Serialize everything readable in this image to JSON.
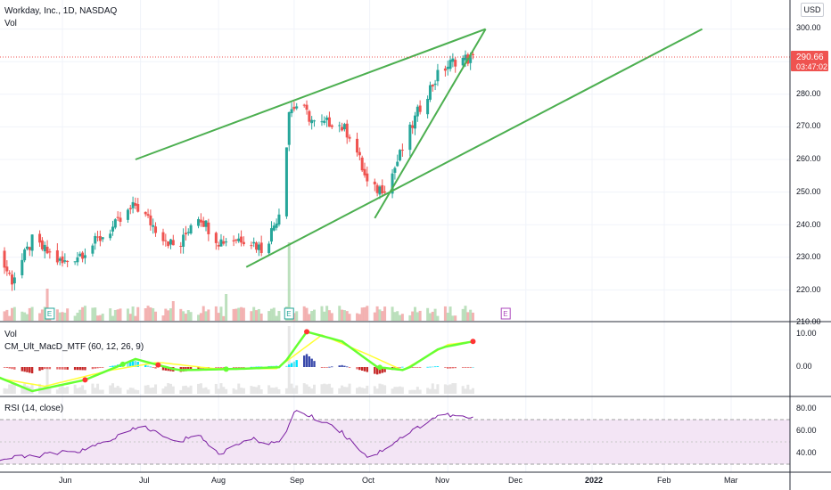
{
  "header": {
    "symbol_title": "Workday, Inc., 1D, NASDAQ",
    "vol_label": "Vol",
    "currency": "USD"
  },
  "price_scale": {
    "ticks": [
      "300.00",
      "290.00",
      "280.00",
      "270.00",
      "260.00",
      "250.00",
      "240.00",
      "230.00",
      "220.00",
      "210.00"
    ],
    "last_price": "290.66",
    "countdown": "03:47:02"
  },
  "macd_pane": {
    "vol_label": "Vol",
    "indicator_label": "CM_Ult_MacD_MTF (60, 12, 26, 9)",
    "ticks": [
      "10.00",
      "0.00"
    ]
  },
  "rsi_pane": {
    "indicator_label": "RSI (14, close)",
    "ticks": [
      "80.00",
      "60.00",
      "40.00"
    ]
  },
  "time_axis": {
    "labels": [
      "Jun",
      "Jul",
      "Aug",
      "Sep",
      "Oct",
      "Nov",
      "Dec",
      "2022",
      "Feb",
      "Mar"
    ]
  },
  "earnings_markers": [
    "E",
    "E",
    "E"
  ],
  "colors": {
    "up": "#26a69a",
    "down": "#ef5350",
    "trendline": "#4caf50",
    "rsi_line": "#7b1fa2",
    "rsi_band": "#f3e5f5",
    "macd_fast": "#66ff33",
    "macd_slow": "#ffff33",
    "macd_down": "#ff3333"
  },
  "chart_data": {
    "type": "candlestick",
    "price_anchors": [
      {
        "date": "May 3",
        "close": 236
      },
      {
        "date": "May 12",
        "close": 223
      },
      {
        "date": "May 20",
        "close": 235
      },
      {
        "date": "Jun 1",
        "close": 228
      },
      {
        "date": "Jun 10",
        "close": 232
      },
      {
        "date": "Jun 24",
        "close": 241
      },
      {
        "date": "Jun 30",
        "close": 246
      },
      {
        "date": "Jul 8",
        "close": 238
      },
      {
        "date": "Jul 16",
        "close": 232
      },
      {
        "date": "Jul 23",
        "close": 244
      },
      {
        "date": "Aug 2",
        "close": 235
      },
      {
        "date": "Aug 13",
        "close": 236
      },
      {
        "date": "Aug 20",
        "close": 232
      },
      {
        "date": "Aug 27",
        "close": 246
      },
      {
        "date": "Aug 30",
        "close": 275
      },
      {
        "date": "Sep 3",
        "close": 277
      },
      {
        "date": "Sep 10",
        "close": 270
      },
      {
        "date": "Sep 17",
        "close": 272
      },
      {
        "date": "Sep 24",
        "close": 267
      },
      {
        "date": "Oct 1",
        "close": 250
      },
      {
        "date": "Oct 8",
        "close": 252
      },
      {
        "date": "Oct 15",
        "close": 265
      },
      {
        "date": "Oct 22",
        "close": 278
      },
      {
        "date": "Oct 29",
        "close": 287
      },
      {
        "date": "Nov 5",
        "close": 291
      },
      {
        "date": "Nov 11",
        "close": 290.66
      }
    ],
    "trendlines": [
      {
        "name": "wedge upper",
        "from": {
          "date": "Jun 30",
          "price": 260
        },
        "to": {
          "date": "Nov 16",
          "price": 300
        }
      },
      {
        "name": "wedge lower",
        "from": {
          "date": "Aug 13",
          "price": 227
        },
        "to": {
          "date": "Feb 10",
          "price": 300
        }
      },
      {
        "name": "steep support",
        "from": {
          "date": "Oct 3",
          "price": 242
        },
        "to": {
          "date": "Nov 16",
          "price": 300
        }
      }
    ],
    "rsi_anchors": [
      {
        "date": "May 3",
        "value": 33
      },
      {
        "date": "May 20",
        "value": 37
      },
      {
        "date": "Jun 10",
        "value": 42
      },
      {
        "date": "Jul 2",
        "value": 63
      },
      {
        "date": "Jul 16",
        "value": 47
      },
      {
        "date": "Jul 23",
        "value": 58
      },
      {
        "date": "Aug 2",
        "value": 38
      },
      {
        "date": "Aug 13",
        "value": 52
      },
      {
        "date": "Aug 27",
        "value": 47
      },
      {
        "date": "Sep 1",
        "value": 76
      },
      {
        "date": "Sep 17",
        "value": 63
      },
      {
        "date": "Oct 1",
        "value": 35
      },
      {
        "date": "Oct 15",
        "value": 55
      },
      {
        "date": "Oct 29",
        "value": 73
      },
      {
        "date": "Nov 11",
        "value": 69
      }
    ],
    "y_range": [
      210,
      305
    ],
    "rsi_range": [
      30,
      85
    ],
    "macd_range": [
      -8,
      13
    ]
  }
}
